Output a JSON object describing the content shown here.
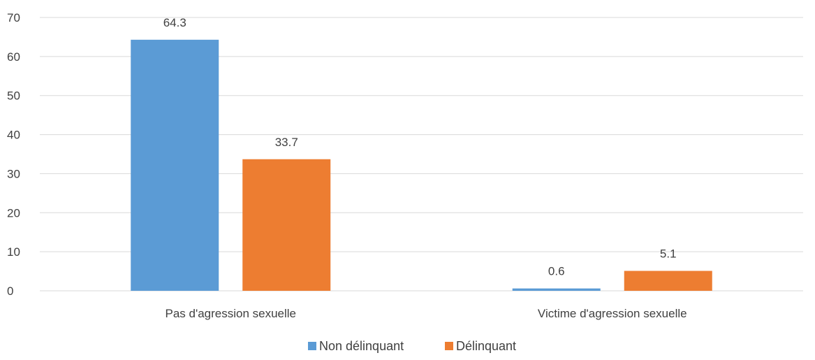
{
  "chart_data": {
    "type": "bar",
    "categories": [
      "Pas d'agression sexuelle",
      "Victime d'agression sexuelle"
    ],
    "series": [
      {
        "name": "Non délinquant",
        "values": [
          64.3,
          0.6
        ],
        "color": "#5B9BD5"
      },
      {
        "name": "Délinquant",
        "values": [
          33.7,
          5.1
        ],
        "color": "#ED7D31"
      }
    ],
    "data_labels": [
      [
        "64.3",
        "0.6"
      ],
      [
        "33.7",
        "5.1"
      ]
    ],
    "ylim": [
      0,
      70
    ],
    "yticks": [
      "0",
      "10",
      "20",
      "30",
      "40",
      "50",
      "60",
      "70"
    ],
    "grid": true,
    "legend": "bottom",
    "gridline_color": "#D9D9D9"
  }
}
